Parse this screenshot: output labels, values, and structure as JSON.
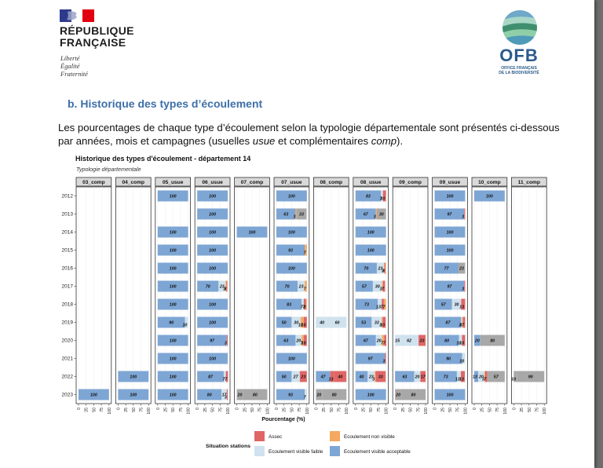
{
  "header": {
    "republic_name_line1": "RÉPUBLIQUE",
    "republic_name_line2": "FRANÇAISE",
    "motto": [
      "Liberté",
      "Égalité",
      "Fraternité"
    ],
    "ofb_logo_text": "OFB",
    "ofb_logo_subtitle_line1": "OFFICE FRANÇAIS",
    "ofb_logo_subtitle_line2": "DE LA BIODIVERSITÉ"
  },
  "section": {
    "title": "b.  Historique des types d’écoulement",
    "intro_part1": "Les pourcentages de chaque type d’écoulement selon la typologie départementale sont présentés ci-dessous par années, mois et campagnes (usuelles ",
    "intro_usue": "usue",
    "intro_part2": " et complémentaires ",
    "intro_comp": "comp",
    "intro_part3": ")."
  },
  "colors": {
    "assec": "#e06666",
    "ecoulement_non_visible": "#f4a860",
    "ecoulement_visible_faible": "#cfe2ee",
    "ecoulement_visible_acceptable": "#7ea6d4",
    "grey_segment": "#a8a8a8"
  },
  "chart_data": {
    "type": "bar",
    "orientation": "horizontal-stacked-faceted",
    "title": "Historique des types d'écoulement - département 14",
    "subtitle": "Typologie départementale",
    "xlabel": "Pourcentage (%)",
    "x_ticks": [
      "0",
      "25",
      "50",
      "75",
      "100"
    ],
    "xlim": [
      0,
      100
    ],
    "years": [
      "2012",
      "2013",
      "2014",
      "2015",
      "2016",
      "2017",
      "2018",
      "2019",
      "2020",
      "2021",
      "2022",
      "2023"
    ],
    "legend_title": "Situation stations",
    "legend": [
      {
        "name": "Assec",
        "color": "#e06666"
      },
      {
        "name": "Ecoulement non visible",
        "color": "#f4a860"
      },
      {
        "name": "Ecoulement visible faible",
        "color": "#cfe2ee"
      },
      {
        "name": "Ecoulement visible acceptable",
        "color": "#7ea6d4"
      }
    ],
    "categories_order": [
      "acceptable",
      "faible",
      "grey",
      "nonvisible",
      "assec"
    ],
    "panels": [
      {
        "name": "03_comp",
        "rows": {
          "2023": {
            "acceptable": 100
          }
        }
      },
      {
        "name": "04_comp",
        "rows": {
          "2022": {
            "acceptable": 100
          },
          "2023": {
            "acceptable": 100
          }
        }
      },
      {
        "name": "05_usue",
        "rows": {
          "2012": {
            "acceptable": 100
          },
          "2014": {
            "acceptable": 100
          },
          "2015": {
            "acceptable": 100
          },
          "2016": {
            "acceptable": 100
          },
          "2017": {
            "acceptable": 100
          },
          "2018": {
            "acceptable": 100
          },
          "2019": {
            "acceptable": 90,
            "faible": 10
          },
          "2020": {
            "acceptable": 100
          },
          "2021": {
            "acceptable": 100
          },
          "2022": {
            "acceptable": 100
          },
          "2023": {
            "acceptable": 100
          }
        }
      },
      {
        "name": "06_usue",
        "rows": {
          "2012": {
            "acceptable": 100
          },
          "2013": {
            "acceptable": 100
          },
          "2014": {
            "acceptable": 100
          },
          "2015": {
            "acceptable": 100
          },
          "2016": {
            "acceptable": 100
          },
          "2017": {
            "acceptable": 70,
            "faible": 23,
            "nonvisible": 3,
            "assec": 3
          },
          "2018": {
            "acceptable": 100
          },
          "2019": {
            "acceptable": 100
          },
          "2020": {
            "acceptable": 97,
            "assec": 3
          },
          "2021": {
            "acceptable": 100
          },
          "2022": {
            "acceptable": 87,
            "faible": 7,
            "assec": 7
          },
          "2023": {
            "acceptable": 80,
            "faible": 17,
            "assec": 3
          }
        }
      },
      {
        "name": "07_comp",
        "rows": {
          "2014": {
            "acceptable": 100
          },
          "2023": {
            "grey": 20,
            "grey2": 80
          }
        }
      },
      {
        "name": "07_usue",
        "rows": {
          "2012": {
            "acceptable": 100
          },
          "2013": {
            "acceptable": 63,
            "nonvisible": 3,
            "grey": 33
          },
          "2014": {
            "acceptable": 100
          },
          "2015": {
            "acceptable": 93,
            "nonvisible": 7
          },
          "2016": {
            "acceptable": 100
          },
          "2017": {
            "acceptable": 70,
            "faible": 23,
            "nonvisible": 7
          },
          "2018": {
            "acceptable": 83,
            "faible": 7,
            "assec": 7,
            "nonvisible": 3
          },
          "2019": {
            "acceptable": 50,
            "faible": 30,
            "nonvisible": 10,
            "assec": 10
          },
          "2020": {
            "acceptable": 63,
            "faible": 20,
            "nonvisible": 7,
            "assec": 10
          },
          "2021": {
            "acceptable": 100
          },
          "2022": {
            "acceptable": 50,
            "faible": 27,
            "assec": 23
          },
          "2023": {
            "acceptable": 93,
            "faible": 7
          }
        }
      },
      {
        "name": "08_comp",
        "rows": {
          "2019": {
            "faible": 40,
            "faible2": 60
          },
          "2022": {
            "acceptable": 47,
            "assec": 13,
            "assec2": 40
          },
          "2023": {
            "grey": 20,
            "grey2": 80
          }
        }
      },
      {
        "name": "08_usue",
        "rows": {
          "2012": {
            "acceptable": 83,
            "faible": 7,
            "assec": 10
          },
          "2013": {
            "acceptable": 67,
            "nonvisible": 3,
            "grey": 30
          },
          "2014": {
            "acceptable": 100
          },
          "2015": {
            "acceptable": 100
          },
          "2016": {
            "acceptable": 70,
            "faible": 23,
            "nonvisible": 3,
            "assec": 3
          },
          "2017": {
            "acceptable": 57,
            "faible": 30,
            "nonvisible": 3,
            "assec": 7
          },
          "2018": {
            "acceptable": 73,
            "faible": 13,
            "assec": 7,
            "nonvisible": 7
          },
          "2019": {
            "acceptable": 53,
            "faible": 33,
            "nonvisible": 3,
            "assec": 10
          },
          "2020": {
            "acceptable": 67,
            "faible": 20,
            "nonvisible": 7,
            "assec": 7
          },
          "2021": {
            "acceptable": 97,
            "assec": 3
          },
          "2022": {
            "acceptable": 40,
            "faible": 23,
            "nonvisible": 3,
            "assec": 33
          },
          "2023": {
            "acceptable": 100
          }
        }
      },
      {
        "name": "09_comp",
        "rows": {
          "2020": {
            "faible": 15,
            "faible2": 62,
            "assec": 23
          },
          "2022": {
            "acceptable": 63,
            "faible": 20,
            "assec": 17
          },
          "2023": {
            "grey": 20,
            "grey2": 80
          }
        }
      },
      {
        "name": "09_usue",
        "rows": {
          "2012": {
            "acceptable": 100
          },
          "2013": {
            "acceptable": 97,
            "assec": 3
          },
          "2014": {
            "acceptable": 100
          },
          "2015": {
            "acceptable": 100
          },
          "2016": {
            "acceptable": 77,
            "grey": 23
          },
          "2017": {
            "acceptable": 97,
            "assec": 3
          },
          "2018": {
            "acceptable": 57,
            "faible": 30,
            "assec": 13
          },
          "2019": {
            "acceptable": 87,
            "faible": 3,
            "nonvisible": 3,
            "assec": 7
          },
          "2020": {
            "acceptable": 80,
            "faible": 10,
            "assec": 10
          },
          "2021": {
            "acceptable": 90,
            "faible": 10
          },
          "2022": {
            "acceptable": 73,
            "faible": 13,
            "assec": 13
          },
          "2023": {
            "acceptable": 100
          }
        }
      },
      {
        "name": "10_comp",
        "rows": {
          "2012": {
            "acceptable": 100
          },
          "2020": {
            "acceptable": 20,
            "grey": 80
          },
          "2022": {
            "acceptable": 13,
            "faible": 20,
            "nonvisible": 3,
            "assec": 7,
            "grey": 57
          }
        }
      },
      {
        "name": "11_comp",
        "rows": {
          "2022": {
            "grey": 10,
            "grey2": 90
          }
        }
      }
    ],
    "grid": true,
    "legend_position": "bottom"
  }
}
